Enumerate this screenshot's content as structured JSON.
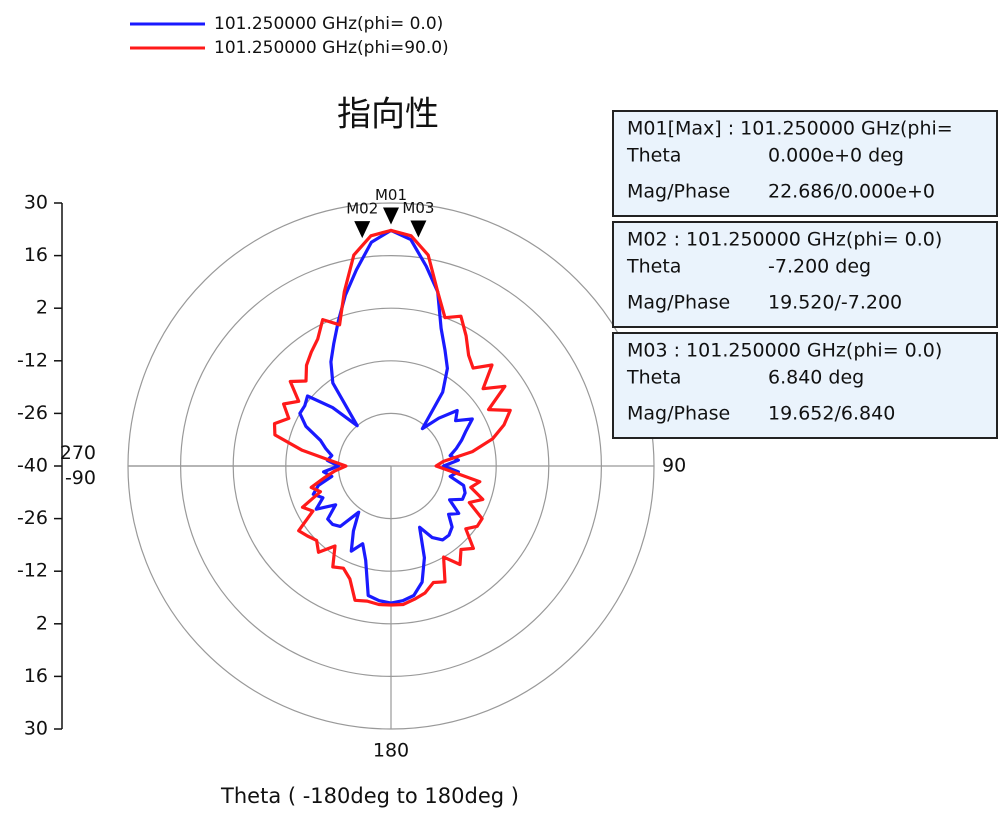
{
  "chart_data": {
    "type": "polar",
    "title": "指向性",
    "x_label": "Theta ( -180deg to 180deg )",
    "x": [
      -180,
      -175,
      -170,
      -165,
      -160,
      -155,
      -150,
      -145,
      -140,
      -135,
      -130,
      -125,
      -120,
      -115,
      -110,
      -105,
      -100,
      -95,
      -90,
      -85,
      -80,
      -75,
      -70,
      -65,
      -60,
      -55,
      -50,
      -45,
      -40,
      -35,
      -30,
      -25,
      -20,
      -15,
      -10,
      -5,
      0,
      5,
      10,
      15,
      20,
      25,
      30,
      35,
      40,
      45,
      50,
      55,
      60,
      65,
      70,
      75,
      80,
      85,
      90,
      95,
      100,
      105,
      110,
      115,
      120,
      125,
      130,
      135,
      140,
      145,
      150,
      155,
      160,
      165,
      170,
      175,
      180
    ],
    "series": [
      {
        "name": "101.250000 GHz(phi= 0.0)",
        "color": "#1a1aff",
        "values": [
          -3.5,
          -4,
          -5,
          -14,
          -18,
          -15,
          -20,
          -25,
          -19,
          -18,
          -18,
          -22,
          -17,
          -20,
          -18,
          -20,
          -24,
          -22,
          -26,
          -23,
          -24,
          -22,
          -20,
          -15,
          -12,
          -12,
          -11,
          -18,
          -26,
          -13,
          -8,
          -4,
          1,
          7,
          13,
          19.8,
          22.7,
          20.5,
          14,
          8,
          -1,
          -6,
          -10,
          -16,
          -27,
          -22,
          -17,
          -19,
          -15,
          -18,
          -20,
          -22,
          -24,
          -22,
          -26,
          -22,
          -24,
          -20,
          -19,
          -19,
          -22,
          -18,
          -20,
          -17,
          -16,
          -16,
          -18,
          -22,
          -14,
          -8,
          -5,
          -4,
          -3.5
        ]
      },
      {
        "name": "101.250000 GHz(phi=90.0)",
        "color": "#ff1a1a",
        "values": [
          -3,
          -3,
          -3.5,
          -3,
          -8,
          -10,
          -9,
          -14,
          -10,
          -12,
          -11,
          -10,
          -16,
          -14,
          -20,
          -18,
          -22,
          -25,
          -28,
          -24,
          -16,
          -8,
          -7,
          -10,
          -7,
          -10,
          -5,
          -8,
          -5,
          -3,
          -1,
          3,
          0,
          8,
          17,
          21.5,
          22.7,
          21.5,
          17,
          8,
          2,
          4,
          0,
          -4,
          -6,
          -2,
          -8,
          -3,
          -10,
          -5,
          -8,
          -12,
          -18,
          -26,
          -28,
          -24,
          -16,
          -18,
          -14,
          -17,
          -12,
          -12,
          -14,
          -9,
          -11,
          -8,
          -12,
          -6,
          -7,
          -5,
          -4,
          -3,
          -3
        ]
      }
    ],
    "rlim": [
      -40,
      30
    ],
    "rticks": [
      -40,
      -26,
      -12,
      2,
      16,
      30
    ],
    "angle_ticks": [
      90,
      180,
      270,
      -90
    ],
    "grid": true,
    "markers": [
      {
        "label": "M01",
        "theta": 0,
        "value": 22.686,
        "box": {
          "title": "M01[Max] : 101.250000 GHz(phi=",
          "rows": [
            [
              "Theta",
              "0.000e+0 deg"
            ],
            [
              "Mag/Phase",
              "22.686/0.000e+0"
            ]
          ]
        }
      },
      {
        "label": "M02",
        "theta": -7.2,
        "value": 19.52,
        "box": {
          "title": "M02 : 101.250000 GHz(phi= 0.0)",
          "rows": [
            [
              "Theta",
              "-7.200 deg"
            ],
            [
              "Mag/Phase",
              "19.520/-7.200"
            ]
          ]
        }
      },
      {
        "label": "M03",
        "theta": 6.84,
        "value": 19.652,
        "box": {
          "title": "M03 : 101.250000 GHz(phi= 0.0)",
          "rows": [
            [
              "Theta",
              "6.840 deg"
            ],
            [
              "Mag/Phase",
              "19.652/6.840"
            ]
          ]
        }
      }
    ]
  }
}
